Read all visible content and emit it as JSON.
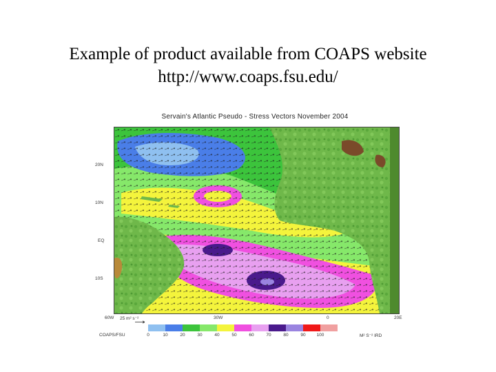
{
  "slide": {
    "title_line1": "Example of product available from COAPS website",
    "title_line2": "http://www.coaps.fsu.edu/"
  },
  "figure": {
    "map_title": "Servain's Atlantic Pseudo - Stress Vectors November 2004",
    "lat_labels": [
      "20N",
      "10N",
      "EQ",
      "10S"
    ],
    "lon_labels": [
      "60W",
      "30W",
      "0",
      "20E"
    ],
    "scale_vector": "25 m² s⁻²",
    "credit": "COAPS/FSU",
    "units": "M² S⁻² IRD",
    "colorbar": {
      "values": [
        "0",
        "10",
        "20",
        "30",
        "40",
        "50",
        "60",
        "70",
        "80",
        "90",
        "100"
      ],
      "colors": [
        "#8fc0f0",
        "#4a7ee8",
        "#3cc43c",
        "#86e86a",
        "#f4f43c",
        "#f050e0",
        "#e8a0f0",
        "#4a1a8c",
        "#9a84e0",
        "#f01818",
        "#f0a0a0"
      ]
    }
  }
}
